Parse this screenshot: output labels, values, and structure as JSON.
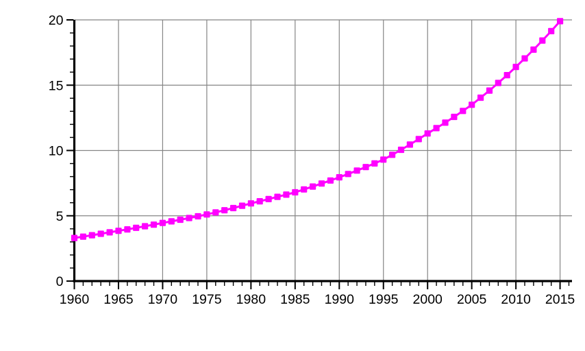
{
  "chart_data": {
    "type": "line",
    "title": "",
    "xlabel": "",
    "ylabel": "",
    "legend": "none",
    "grid": true,
    "background_color": "#ffffff",
    "grid_color": "#858585",
    "axis_color": "#000000",
    "xlim": [
      1960,
      2016.35
    ],
    "ylim": [
      0,
      20
    ],
    "x_major_ticks": [
      1960,
      1965,
      1970,
      1975,
      1980,
      1985,
      1990,
      1995,
      2000,
      2005,
      2010,
      2015
    ],
    "x_tick_labels": [
      "1960",
      "1965",
      "1970",
      "1975",
      "1980",
      "1985",
      "1990",
      "1995",
      "2000",
      "2005",
      "2010",
      "2015"
    ],
    "x_minor_step": 1,
    "y_major_ticks": [
      0,
      5,
      10,
      15,
      20
    ],
    "y_tick_labels": [
      "0",
      "5",
      "10",
      "15",
      "20"
    ],
    "y_minor_step": 1,
    "series": [
      {
        "name": "series-1",
        "color": "#FF00FF",
        "marker": "square",
        "x": [
          1960,
          1961,
          1962,
          1963,
          1964,
          1965,
          1966,
          1967,
          1968,
          1969,
          1970,
          1971,
          1972,
          1973,
          1974,
          1975,
          1976,
          1977,
          1978,
          1979,
          1980,
          1981,
          1982,
          1983,
          1984,
          1985,
          1986,
          1987,
          1988,
          1989,
          1990,
          1991,
          1992,
          1993,
          1994,
          1995,
          1996,
          1997,
          1998,
          1999,
          2000,
          2001,
          2002,
          2003,
          2004,
          2005,
          2006,
          2007,
          2008,
          2009,
          2010,
          2011,
          2012,
          2013,
          2014,
          2015
        ],
        "values": [
          3.3,
          3.4,
          3.51,
          3.62,
          3.73,
          3.85,
          3.96,
          4.08,
          4.2,
          4.32,
          4.45,
          4.57,
          4.7,
          4.83,
          4.96,
          5.1,
          5.26,
          5.42,
          5.59,
          5.77,
          5.95,
          6.11,
          6.28,
          6.45,
          6.62,
          6.8,
          7.02,
          7.24,
          7.47,
          7.7,
          7.95,
          8.2,
          8.46,
          8.73,
          9.01,
          9.3,
          9.67,
          10.05,
          10.45,
          10.87,
          11.3,
          11.71,
          12.13,
          12.57,
          13.03,
          13.5,
          14.04,
          14.59,
          15.17,
          15.77,
          16.4,
          17.05,
          17.72,
          18.42,
          19.14,
          19.9
        ]
      }
    ]
  }
}
